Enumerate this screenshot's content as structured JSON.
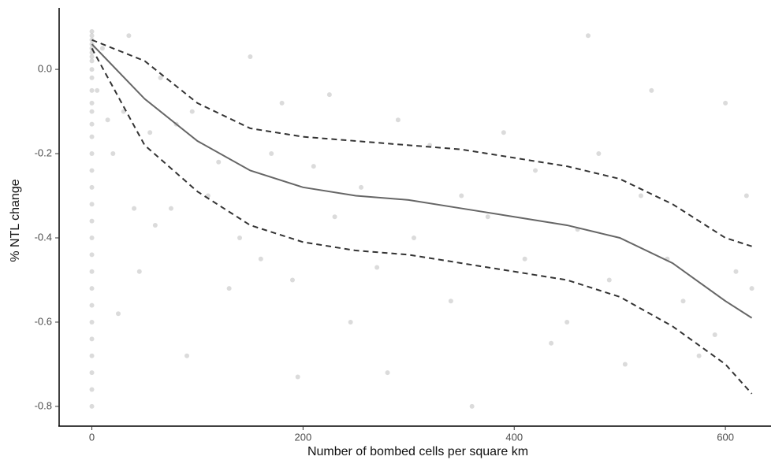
{
  "chart_data": {
    "type": "scatter",
    "x_label": "Number of bombed cells per square km",
    "y_label": "% NTL change",
    "xlim": [
      -31,
      641
    ],
    "ylim": [
      -0.845,
      0.146
    ],
    "xticks": [
      0,
      200,
      400,
      600
    ],
    "yticks": [
      {
        "value": 0,
        "label": "0.0"
      },
      -0.2,
      -0.4,
      -0.6,
      -0.8
    ],
    "grid": false,
    "series": [
      {
        "type": "scatter",
        "color": "#b0b0b0",
        "x": [
          0,
          0,
          0,
          0,
          0,
          0,
          0,
          0,
          0,
          0,
          0,
          0,
          0,
          0,
          0,
          0,
          0,
          0,
          0,
          0,
          0,
          0,
          0,
          0,
          0,
          0,
          0,
          0,
          0,
          0,
          0,
          5,
          10,
          15,
          20,
          25,
          30,
          35,
          40,
          45,
          55,
          60,
          65,
          75,
          80,
          90,
          95,
          110,
          120,
          130,
          140,
          150,
          160,
          170,
          180,
          190,
          195,
          210,
          225,
          230,
          245,
          255,
          270,
          280,
          290,
          305,
          320,
          340,
          350,
          360,
          375,
          390,
          410,
          420,
          435,
          450,
          460,
          470,
          480,
          490,
          505,
          520,
          530,
          545,
          560,
          575,
          590,
          600,
          610,
          620,
          625
        ],
        "values": [
          0.09,
          0.08,
          0.07,
          0.06,
          0.05,
          0.04,
          0.03,
          0.02,
          0.0,
          -0.02,
          -0.05,
          -0.08,
          -0.1,
          -0.13,
          -0.16,
          -0.2,
          -0.24,
          -0.28,
          -0.32,
          -0.36,
          -0.4,
          -0.44,
          -0.48,
          -0.52,
          -0.56,
          -0.6,
          -0.64,
          -0.68,
          -0.72,
          -0.76,
          -0.8,
          -0.05,
          0.05,
          -0.12,
          -0.2,
          -0.58,
          -0.1,
          0.08,
          -0.33,
          -0.48,
          -0.15,
          -0.37,
          -0.02,
          -0.33,
          -0.13,
          -0.68,
          -0.1,
          -0.3,
          -0.22,
          -0.52,
          -0.4,
          0.03,
          -0.45,
          -0.2,
          -0.08,
          -0.5,
          -0.73,
          -0.23,
          -0.06,
          -0.35,
          -0.6,
          -0.28,
          -0.47,
          -0.72,
          -0.12,
          -0.4,
          -0.18,
          -0.55,
          -0.3,
          -0.8,
          -0.35,
          -0.15,
          -0.45,
          -0.24,
          -0.65,
          -0.6,
          -0.38,
          0.08,
          -0.2,
          -0.5,
          -0.7,
          -0.3,
          -0.05,
          -0.45,
          -0.55,
          -0.68,
          -0.63,
          -0.08,
          -0.48,
          -0.3,
          -0.52
        ]
      },
      {
        "type": "line",
        "color": "#666666",
        "dashed": false,
        "x": [
          0,
          50,
          100,
          150,
          200,
          250,
          300,
          350,
          400,
          450,
          500,
          550,
          600,
          625
        ],
        "values": [
          0.06,
          -0.07,
          -0.17,
          -0.24,
          -0.28,
          -0.3,
          -0.31,
          -0.33,
          -0.35,
          -0.37,
          -0.4,
          -0.46,
          -0.55,
          -0.59
        ]
      },
      {
        "type": "line",
        "color": "#333333",
        "dashed": true,
        "x": [
          0,
          50,
          100,
          150,
          200,
          250,
          300,
          350,
          400,
          450,
          500,
          550,
          600,
          625
        ],
        "values": [
          0.07,
          0.02,
          -0.08,
          -0.14,
          -0.16,
          -0.17,
          -0.18,
          -0.19,
          -0.21,
          -0.23,
          -0.26,
          -0.32,
          -0.4,
          -0.42
        ]
      },
      {
        "type": "line",
        "color": "#333333",
        "dashed": true,
        "x": [
          0,
          50,
          100,
          150,
          200,
          250,
          300,
          350,
          400,
          450,
          500,
          550,
          600,
          625
        ],
        "values": [
          0.05,
          -0.18,
          -0.29,
          -0.37,
          -0.41,
          -0.43,
          -0.44,
          -0.46,
          -0.48,
          -0.5,
          -0.54,
          -0.61,
          -0.7,
          -0.77
        ]
      }
    ]
  }
}
